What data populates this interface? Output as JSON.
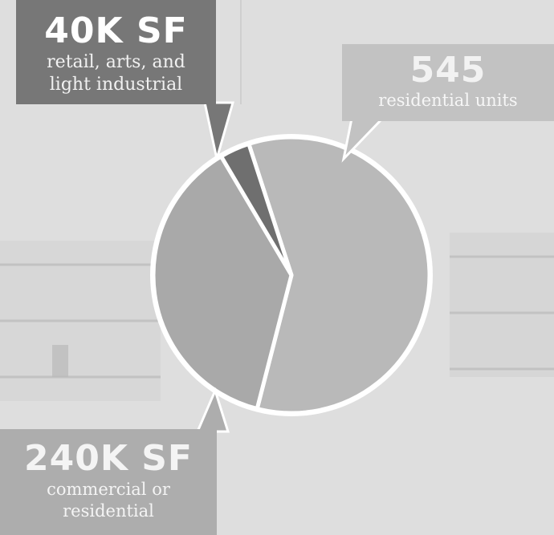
{
  "background": {
    "base_color": "#dcdcdc",
    "panel_color": "#cfcfcf",
    "line_color": "#b9b9b9"
  },
  "chart_data": {
    "type": "pie",
    "start_angle_deg": 342,
    "slices": [
      {
        "key": "residential",
        "value": 59.0,
        "color": "#b9b9b9"
      },
      {
        "key": "commercial",
        "value": 37.5,
        "color": "#a9a9a9"
      },
      {
        "key": "retail",
        "value": 3.5,
        "color": "#6f6f6f"
      }
    ],
    "order_clockwise_from_start": [
      "residential",
      "commercial",
      "retail"
    ],
    "callouts": {
      "retail": {
        "value_label": "40K SF",
        "description_lines": [
          "retail, arts, and",
          "light industrial"
        ],
        "box_color": "#777777"
      },
      "residential": {
        "value_label": "545",
        "description_lines": [
          "residential units"
        ],
        "box_color": "#c2c2c2"
      },
      "commercial": {
        "value_label": "240K SF",
        "description_lines": [
          "commercial or",
          "residential"
        ],
        "box_color": "#adadad"
      }
    }
  }
}
